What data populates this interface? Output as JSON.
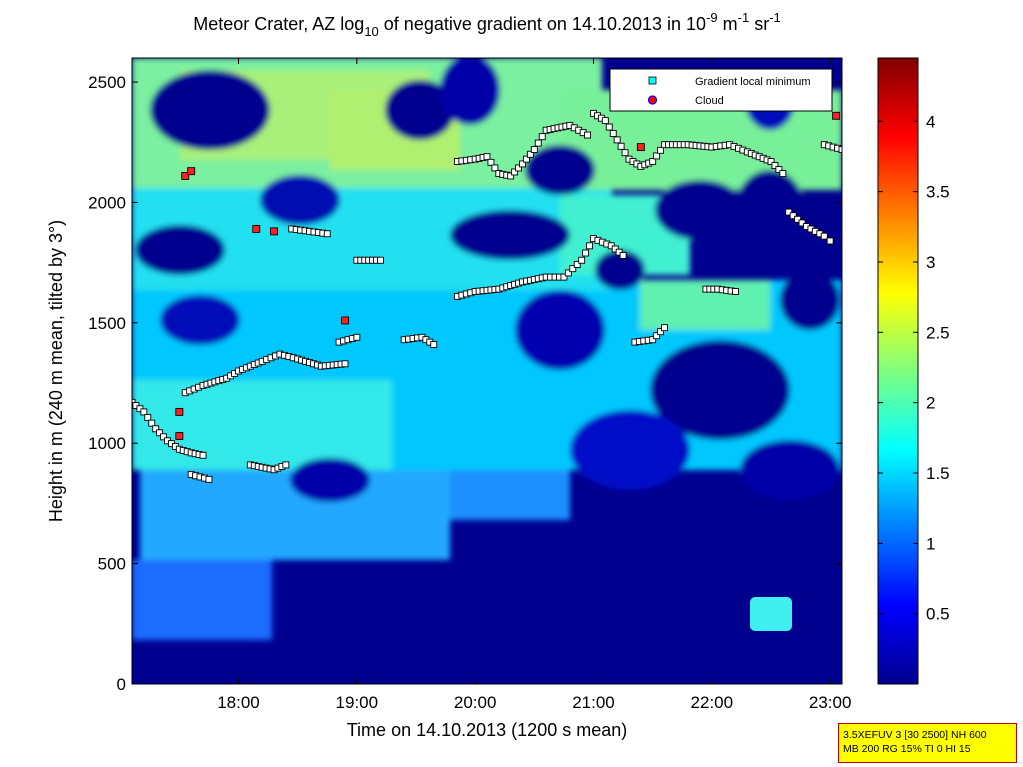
{
  "chart_data": {
    "type": "heatmap",
    "title": {
      "prefix": "Meteor Crater, AZ log",
      "sub": "10",
      "middle": " of negative gradient on 14.10.2013 in 10",
      "sup1": "-9",
      "unit1": " m",
      "sup2": "-1",
      "unit2": " sr",
      "sup3": "-1"
    },
    "xlabel": "Time on 14.10.2013 (1200 s mean)",
    "ylabel": "Height in m (240 m mean, tilted by 3°)",
    "xlim_hours": [
      17.1,
      23.1
    ],
    "ylim": [
      0,
      2600
    ],
    "x_ticks": [
      {
        "value": 18,
        "label": "18:00"
      },
      {
        "value": 19,
        "label": "19:00"
      },
      {
        "value": 20,
        "label": "20:00"
      },
      {
        "value": 21,
        "label": "21:00"
      },
      {
        "value": 22,
        "label": "22:00"
      },
      {
        "value": 23,
        "label": "23:00"
      }
    ],
    "y_ticks": [
      {
        "value": 0,
        "label": "0"
      },
      {
        "value": 500,
        "label": "500"
      },
      {
        "value": 1000,
        "label": "1000"
      },
      {
        "value": 1500,
        "label": "1500"
      },
      {
        "value": 2000,
        "label": "2000"
      },
      {
        "value": 2500,
        "label": "2500"
      }
    ],
    "colorbar": {
      "colormap": "jet",
      "range": [
        0,
        4.45
      ],
      "ticks": [
        {
          "value": 0.5,
          "label": "0.5"
        },
        {
          "value": 1,
          "label": "1"
        },
        {
          "value": 1.5,
          "label": "1.5"
        },
        {
          "value": 2,
          "label": "2"
        },
        {
          "value": 2.5,
          "label": "2.5"
        },
        {
          "value": 3,
          "label": "3"
        },
        {
          "value": 3.5,
          "label": "3.5"
        },
        {
          "value": 4,
          "label": "4"
        }
      ]
    },
    "legend": {
      "placement": "top-right",
      "entries": [
        {
          "label": "Gradient local minimum",
          "marker": "square",
          "color": "#00ffff"
        },
        {
          "label": "Cloud",
          "marker": "circle",
          "color": "#ff0000"
        }
      ]
    },
    "gradient_layers": [
      {
        "name": "layer-a",
        "points": [
          [
            17.1,
            1170
          ],
          [
            17.2,
            1130
          ],
          [
            17.3,
            1060
          ],
          [
            17.4,
            1010
          ],
          [
            17.5,
            975
          ],
          [
            17.6,
            960
          ],
          [
            17.7,
            950
          ]
        ]
      },
      {
        "name": "layer-b",
        "points": [
          [
            17.55,
            1210
          ],
          [
            17.7,
            1240
          ],
          [
            17.9,
            1270
          ],
          [
            18.0,
            1300
          ],
          [
            18.2,
            1340
          ],
          [
            18.35,
            1370
          ],
          [
            18.5,
            1350
          ],
          [
            18.7,
            1320
          ],
          [
            18.9,
            1330
          ]
        ]
      },
      {
        "name": "layer-c",
        "points": [
          [
            18.85,
            1420
          ],
          [
            19.0,
            1440
          ]
        ]
      },
      {
        "name": "layer-d",
        "points": [
          [
            19.0,
            1760
          ],
          [
            19.2,
            1760
          ]
        ]
      },
      {
        "name": "layer-e",
        "points": [
          [
            19.4,
            1430
          ],
          [
            19.55,
            1440
          ],
          [
            19.65,
            1410
          ]
        ]
      },
      {
        "name": "layer-f",
        "points": [
          [
            19.85,
            1610
          ],
          [
            20.0,
            1630
          ],
          [
            20.2,
            1640
          ],
          [
            20.4,
            1670
          ],
          [
            20.6,
            1690
          ],
          [
            20.75,
            1690
          ],
          [
            20.9,
            1760
          ],
          [
            21.0,
            1850
          ],
          [
            21.15,
            1820
          ],
          [
            21.25,
            1780
          ]
        ]
      },
      {
        "name": "layer-g",
        "points": [
          [
            19.85,
            2170
          ],
          [
            20.0,
            2180
          ],
          [
            20.1,
            2190
          ],
          [
            20.2,
            2120
          ],
          [
            20.3,
            2110
          ],
          [
            20.4,
            2160
          ],
          [
            20.5,
            2220
          ],
          [
            20.6,
            2300
          ],
          [
            20.8,
            2320
          ],
          [
            20.95,
            2280
          ]
        ]
      },
      {
        "name": "layer-h",
        "points": [
          [
            21.0,
            2370
          ],
          [
            21.1,
            2340
          ],
          [
            21.2,
            2260
          ],
          [
            21.3,
            2180
          ],
          [
            21.4,
            2150
          ],
          [
            21.5,
            2170
          ],
          [
            21.6,
            2240
          ],
          [
            21.8,
            2240
          ],
          [
            22.0,
            2230
          ],
          [
            22.15,
            2240
          ],
          [
            22.3,
            2210
          ],
          [
            22.5,
            2170
          ],
          [
            22.6,
            2120
          ]
        ]
      },
      {
        "name": "layer-i",
        "points": [
          [
            22.65,
            1960
          ],
          [
            22.8,
            1900
          ],
          [
            22.95,
            1860
          ],
          [
            23.0,
            1840
          ]
        ]
      },
      {
        "name": "layer-j",
        "points": [
          [
            22.95,
            2240
          ],
          [
            23.1,
            2220
          ]
        ]
      },
      {
        "name": "layer-k",
        "points": [
          [
            18.1,
            910
          ],
          [
            18.2,
            900
          ],
          [
            18.3,
            890
          ],
          [
            18.4,
            910
          ]
        ]
      },
      {
        "name": "layer-l",
        "points": [
          [
            17.6,
            870
          ],
          [
            17.75,
            850
          ]
        ]
      },
      {
        "name": "layer-m",
        "points": [
          [
            18.45,
            1890
          ],
          [
            18.6,
            1880
          ],
          [
            18.75,
            1870
          ]
        ]
      },
      {
        "name": "layer-n",
        "points": [
          [
            21.35,
            1420
          ],
          [
            21.5,
            1430
          ],
          [
            21.6,
            1480
          ]
        ]
      },
      {
        "name": "layer-o",
        "points": [
          [
            21.95,
            1640
          ],
          [
            22.05,
            1640
          ],
          [
            22.2,
            1630
          ]
        ]
      }
    ],
    "clouds": [
      {
        "x": 17.55,
        "y": 2110
      },
      {
        "x": 17.6,
        "y": 2130
      },
      {
        "x": 18.15,
        "y": 1890
      },
      {
        "x": 18.3,
        "y": 1880
      },
      {
        "x": 17.5,
        "y": 1130
      },
      {
        "x": 17.5,
        "y": 1030
      },
      {
        "x": 18.9,
        "y": 1510
      },
      {
        "x": 21.4,
        "y": 2230
      },
      {
        "x": 23.05,
        "y": 2360
      }
    ]
  },
  "info_box": {
    "line1": "3.5XEFUV 3 [30 2500] NH 600",
    "line2": "MB 200 RG 15% TI 0 HI 15"
  },
  "colors": {
    "background": "#00008f",
    "low": "#0000ff",
    "mid": "#00ffff",
    "high": "#ffff00",
    "max": "#800000"
  }
}
